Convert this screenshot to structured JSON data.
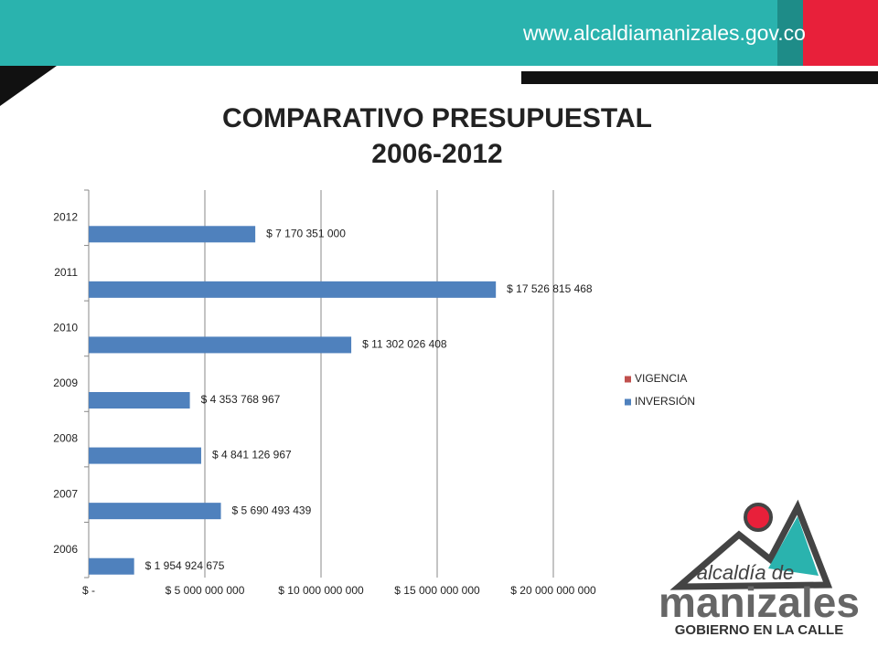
{
  "header": {
    "url": "www.alcaldiamanizales.gov.co"
  },
  "logo": {
    "line1": "alcaldía de",
    "line2": "manizales",
    "line3": "GOBIERNO EN LA CALLE"
  },
  "chart_data": {
    "type": "bar",
    "orientation": "horizontal",
    "title": "COMPARATIVO PRESUPUESTAL",
    "subtitle": "2006-2012",
    "categories": [
      "2006",
      "2007",
      "2008",
      "2009",
      "2010",
      "2011",
      "2012"
    ],
    "series": [
      {
        "name": "VIGENCIA",
        "color": "#c0504d",
        "values": [
          null,
          null,
          null,
          null,
          null,
          null,
          null
        ]
      },
      {
        "name": "INVERSIÓN",
        "color": "#4f81bd",
        "values": [
          1954924675,
          5690493439,
          4841126967,
          4353768967,
          11302026408,
          17526815468,
          7170351000
        ],
        "value_labels": [
          "$ 1 954 924 675",
          "$ 5 690 493 439",
          "$ 4 841 126 967",
          "$ 4 353 768 967",
          "$ 11 302 026 408",
          "$ 17 526 815 468",
          "$ 7 170 351 000"
        ]
      }
    ],
    "xlim": [
      0,
      20000000000
    ],
    "xticks": [
      {
        "value": 0,
        "label": "$ -"
      },
      {
        "value": 5000000000,
        "label": "$ 5 000 000 000"
      },
      {
        "value": 10000000000,
        "label": "$ 10 000 000 000"
      },
      {
        "value": 15000000000,
        "label": "$ 15 000 000 000"
      },
      {
        "value": 20000000000,
        "label": "$ 20 000 000 000"
      }
    ],
    "grid": true,
    "legend": "right"
  }
}
